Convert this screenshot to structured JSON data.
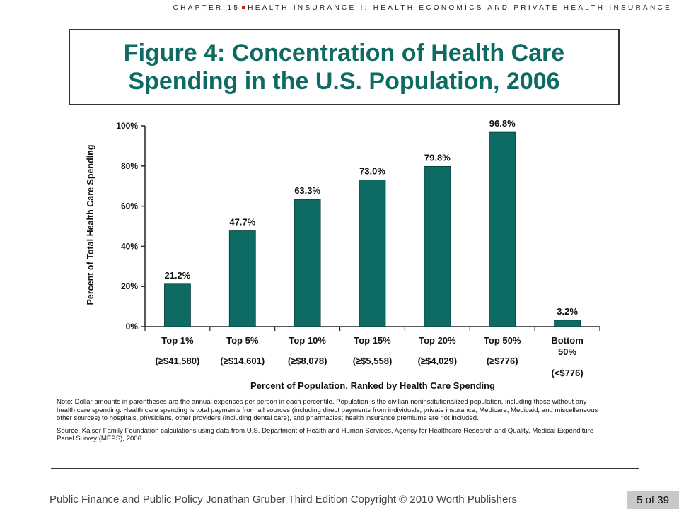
{
  "header": {
    "chapter": "CHAPTER 15",
    "topic": "HEALTH INSURANCE I: HEALTH ECONOMICS AND PRIVATE HEALTH INSURANCE"
  },
  "figure": {
    "title_line1": "Figure 4: Concentration of Health Care",
    "title_line2": "Spending in the U.S. Population, 2006"
  },
  "colors": {
    "bar": "#0d6b63",
    "title": "#0d6b63"
  },
  "chart_data": {
    "type": "bar",
    "categories": [
      "Top 1%",
      "Top 5%",
      "Top 10%",
      "Top 15%",
      "Top 20%",
      "Top 50%",
      "Bottom 50%"
    ],
    "category_notes": [
      "(≥$41,580)",
      "(≥$14,601)",
      "(≥$8,078)",
      "(≥$5,558)",
      "(≥$4,029)",
      "(≥$776)",
      "(<$776)"
    ],
    "values": [
      21.2,
      47.7,
      63.3,
      73.0,
      79.8,
      96.8,
      3.2
    ],
    "value_labels": [
      "21.2%",
      "47.7%",
      "63.3%",
      "73.0%",
      "79.8%",
      "96.8%",
      "3.2%"
    ],
    "yticks": [
      0,
      20,
      40,
      60,
      80,
      100
    ],
    "ytick_labels": [
      "0%",
      "20%",
      "40%",
      "60%",
      "80%",
      "100%"
    ],
    "ylim": [
      0,
      100
    ],
    "xlabel": "Percent of Population, Ranked by Health Care Spending",
    "ylabel": "Percent of Total Health Care Spending",
    "grid": false,
    "legend": "none"
  },
  "notes": {
    "note": "Note: Dollar amounts in parentheses are the annual expenses per person in each percentile. Population is the civilian noninstitutionalized population, including those without any health care spending. Health care spending is total payments from all sources (including direct payments from individuals, private insurance, Medicare, Medicaid, and miscellaneous other sources) to hospitals, physicians, other providers (including dental care), and pharmacies; health insurance premiums are not included.",
    "source": "Source: Kaiser Family Foundation calculations using data from U.S. Department of Health and Human Services, Agency for Healthcare Research and Quality, Medical Expenditure Panel Survey (MEPS), 2006."
  },
  "footer": {
    "citation": "Public Finance and Public Policy  Jonathan Gruber  Third Edition  Copyright © 2010  Worth Publishers",
    "page": "5 of 39"
  }
}
